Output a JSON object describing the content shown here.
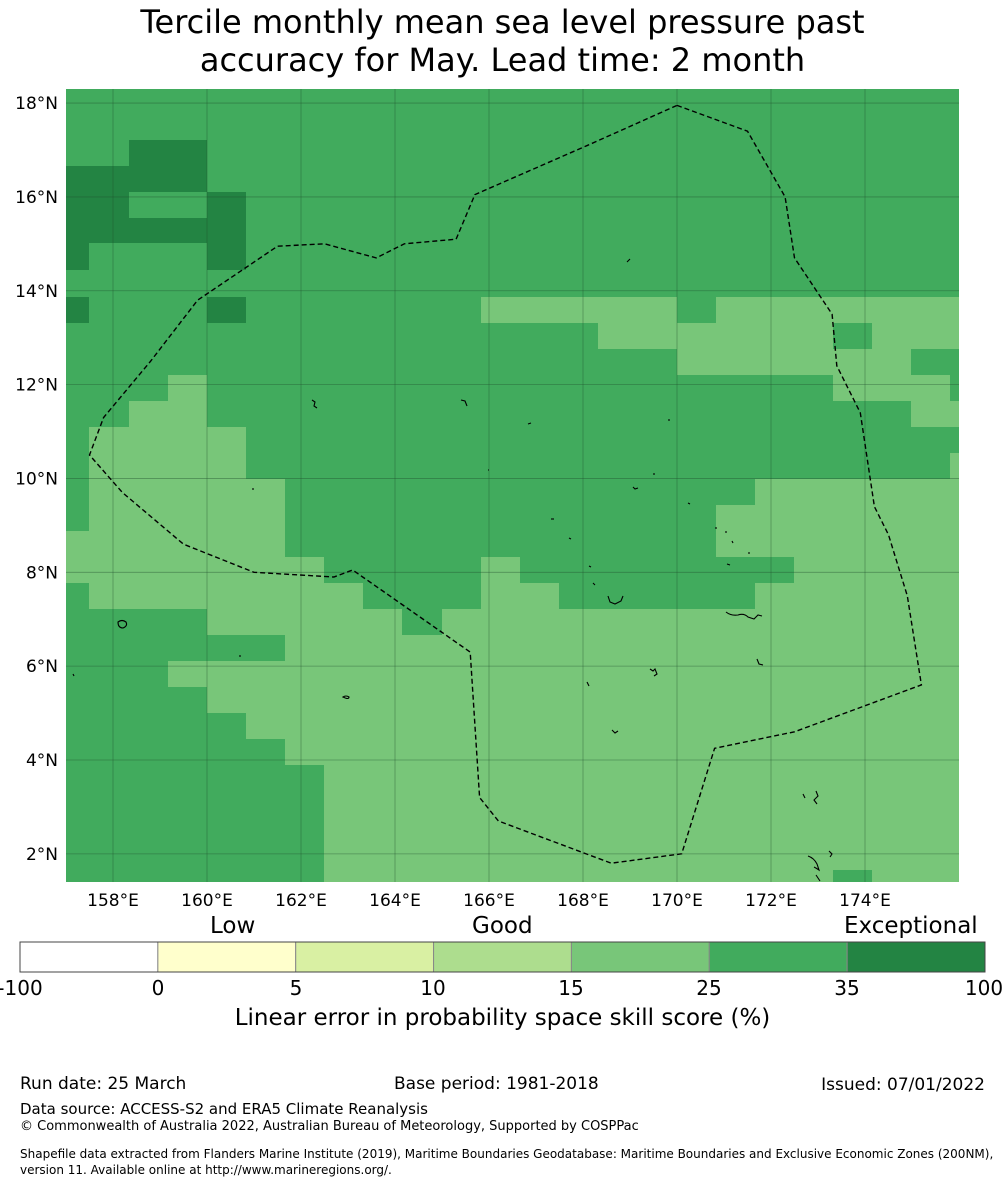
{
  "title_line1": "Tercile monthly mean sea level pressure past",
  "title_line2": "accuracy for May. Lead time: 2 month",
  "map": {
    "lon_range": [
      157.0,
      176.0
    ],
    "lat_range": [
      1.4,
      18.3
    ],
    "lat_ticks": [
      {
        "value": 18,
        "label": "18°N"
      },
      {
        "value": 16,
        "label": "16°N"
      },
      {
        "value": 14,
        "label": "14°N"
      },
      {
        "value": 12,
        "label": "12°N"
      },
      {
        "value": 10,
        "label": "10°N"
      },
      {
        "value": 8,
        "label": "8°N"
      },
      {
        "value": 6,
        "label": "6°N"
      },
      {
        "value": 4,
        "label": "4°N"
      },
      {
        "value": 2,
        "label": "2°N"
      }
    ],
    "lon_ticks": [
      {
        "value": 158,
        "label": "158°E"
      },
      {
        "value": 160,
        "label": "160°E"
      },
      {
        "value": 162,
        "label": "162°E"
      },
      {
        "value": 164,
        "label": "164°E"
      },
      {
        "value": 166,
        "label": "166°E"
      },
      {
        "value": 168,
        "label": "168°E"
      },
      {
        "value": 170,
        "label": "170°E"
      },
      {
        "value": 172,
        "label": "172°E"
      },
      {
        "value": 174,
        "label": "174°E"
      }
    ],
    "colors": {
      "c15_25": "#78c679",
      "c25_35": "#41ab5d",
      "c35_100": "#238443"
    },
    "eez_boundary": [
      [
        170.0,
        17.95
      ],
      [
        171.5,
        17.4
      ],
      [
        172.3,
        16.0
      ],
      [
        172.5,
        14.7
      ],
      [
        173.3,
        13.5
      ],
      [
        173.4,
        12.4
      ],
      [
        173.9,
        11.4
      ],
      [
        174.2,
        9.4
      ],
      [
        174.5,
        8.8
      ],
      [
        174.9,
        7.5
      ],
      [
        175.2,
        5.6
      ],
      [
        172.5,
        4.6
      ],
      [
        170.8,
        4.25
      ],
      [
        170.1,
        2.0
      ],
      [
        168.6,
        1.8
      ],
      [
        166.2,
        2.7
      ],
      [
        165.8,
        3.2
      ],
      [
        165.6,
        6.3
      ],
      [
        163.1,
        8.05
      ],
      [
        162.7,
        7.9
      ],
      [
        161.0,
        8.0
      ],
      [
        159.5,
        8.6
      ],
      [
        158.2,
        9.7
      ],
      [
        157.5,
        10.5
      ],
      [
        157.8,
        11.3
      ],
      [
        158.8,
        12.5
      ],
      [
        159.8,
        13.8
      ],
      [
        161.5,
        14.95
      ],
      [
        162.5,
        15.0
      ],
      [
        163.6,
        14.7
      ],
      [
        164.2,
        15.0
      ],
      [
        165.3,
        15.1
      ],
      [
        165.7,
        16.05
      ],
      [
        168.1,
        17.1
      ],
      [
        170.0,
        17.95
      ]
    ]
  },
  "colorbar": {
    "categories": [
      {
        "label": "Low"
      },
      {
        "label": "Good"
      },
      {
        "label": "Exceptional"
      }
    ],
    "colors": [
      "#ffffff",
      "#ffffcc",
      "#d9f0a3",
      "#addd8e",
      "#78c679",
      "#41ab5d",
      "#238443"
    ],
    "boundaries": [
      "-100",
      "0",
      "5",
      "10",
      "15",
      "25",
      "35",
      "100"
    ],
    "label": "Linear error in probability space skill score (%)"
  },
  "footer": {
    "run_date": "Run date: 25 March",
    "base_period": "Base period: 1981-2018",
    "issued": "Issued: 07/01/2022",
    "data_source": "Data source: ACCESS-S2 and ERA5 Climate Reanalysis",
    "copyright": "© Commonwealth of Australia 2022, Australian Bureau of Meteorology, Supported by COSPPac",
    "shapefile_note": "Shapefile data extracted from Flanders Marine Institute (2019), Maritime Boundaries Geodatabase: Maritime Boundaries and Exclusive Economic Zones (200NM), version 11. Available online at http://www.marineregions.org/."
  }
}
